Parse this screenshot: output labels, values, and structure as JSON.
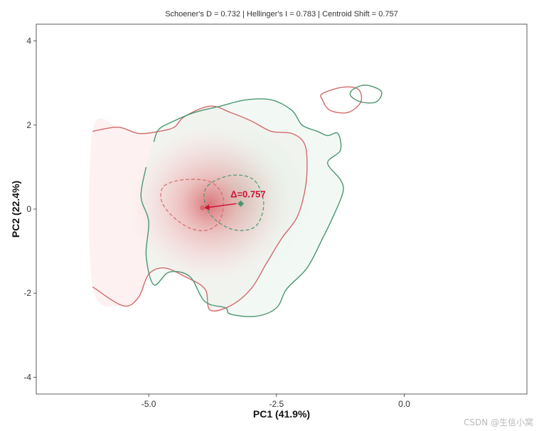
{
  "chart_data": {
    "type": "density-contour",
    "title": "Schoener's D = 0.732 | Hellinger's I = 0.783 | Centroid Shift = 0.757",
    "xlabel": "PC1 (41.9%)",
    "ylabel": "PC2 (22.4%)",
    "xlim": [
      -7.2,
      2.4
    ],
    "ylim": [
      -4.4,
      4.4
    ],
    "x_ticks": [
      -5.0,
      -2.5,
      0.0
    ],
    "x_tick_labels": [
      "-5.0",
      "-2.5",
      "0.0"
    ],
    "y_ticks": [
      -4,
      -2,
      0,
      2,
      4
    ],
    "y_tick_labels": [
      "-4",
      "-2",
      "0",
      "2",
      "4"
    ],
    "grid": false,
    "colors": {
      "red": "#d46a6a",
      "green": "#4a9670",
      "arrow": "#cc1133"
    },
    "series": [
      {
        "color": "#d46a6a",
        "centroid": [
          -3.95,
          0.03
        ],
        "density_peak": [
          -3.95,
          0.03
        ],
        "outer_contour": [
          [
            -6.1,
            1.85
          ],
          [
            -5.6,
            1.95
          ],
          [
            -5.2,
            1.8
          ],
          [
            -4.8,
            1.85
          ],
          [
            -4.5,
            1.95
          ],
          [
            -4.3,
            2.2
          ],
          [
            -3.8,
            2.45
          ],
          [
            -3.4,
            2.3
          ],
          [
            -3.0,
            2.1
          ],
          [
            -2.6,
            1.85
          ],
          [
            -2.2,
            1.8
          ],
          [
            -1.95,
            1.55
          ],
          [
            -1.9,
            1.0
          ],
          [
            -1.95,
            0.4
          ],
          [
            -2.1,
            -0.2
          ],
          [
            -2.4,
            -0.7
          ],
          [
            -2.7,
            -1.3
          ],
          [
            -3.0,
            -1.9
          ],
          [
            -3.4,
            -2.3
          ],
          [
            -3.8,
            -2.4
          ],
          [
            -3.9,
            -1.9
          ],
          [
            -4.3,
            -1.6
          ],
          [
            -4.7,
            -1.4
          ],
          [
            -5.0,
            -1.55
          ],
          [
            -5.2,
            -2.1
          ],
          [
            -5.5,
            -2.3
          ],
          [
            -6.1,
            -1.85
          ]
        ],
        "inner_contour": [
          [
            -4.7,
            0.55
          ],
          [
            -4.3,
            0.7
          ],
          [
            -3.8,
            0.65
          ],
          [
            -3.55,
            0.3
          ],
          [
            -3.6,
            -0.25
          ],
          [
            -3.85,
            -0.5
          ],
          [
            -4.2,
            -0.45
          ],
          [
            -4.55,
            -0.15
          ],
          [
            -4.75,
            0.2
          ]
        ],
        "island_contour": [
          [
            -1.6,
            2.75
          ],
          [
            -1.2,
            2.9
          ],
          [
            -0.9,
            2.85
          ],
          [
            -0.85,
            2.55
          ],
          [
            -1.1,
            2.3
          ],
          [
            -1.45,
            2.35
          ],
          [
            -1.6,
            2.6
          ]
        ]
      },
      {
        "color": "#4a9670",
        "centroid": [
          -3.2,
          0.13
        ],
        "outer_contour": [
          [
            -4.9,
            1.6
          ],
          [
            -4.8,
            1.9
          ],
          [
            -4.5,
            2.1
          ],
          [
            -4.1,
            2.3
          ],
          [
            -3.6,
            2.45
          ],
          [
            -3.1,
            2.6
          ],
          [
            -2.6,
            2.6
          ],
          [
            -2.2,
            2.35
          ],
          [
            -2.0,
            2.0
          ],
          [
            -1.7,
            1.85
          ],
          [
            -1.5,
            1.75
          ],
          [
            -1.3,
            1.8
          ],
          [
            -1.25,
            1.4
          ],
          [
            -1.5,
            1.1
          ],
          [
            -1.25,
            0.7
          ],
          [
            -1.2,
            0.4
          ],
          [
            -1.4,
            -0.2
          ],
          [
            -1.6,
            -0.7
          ],
          [
            -1.9,
            -1.4
          ],
          [
            -2.3,
            -1.9
          ],
          [
            -2.5,
            -2.35
          ],
          [
            -2.9,
            -2.55
          ],
          [
            -3.4,
            -2.5
          ],
          [
            -3.5,
            -2.35
          ],
          [
            -3.9,
            -2.2
          ],
          [
            -4.2,
            -1.6
          ],
          [
            -4.6,
            -1.5
          ],
          [
            -4.9,
            -1.8
          ],
          [
            -5.05,
            -1.1
          ],
          [
            -5.0,
            -0.3
          ],
          [
            -5.15,
            0.3
          ],
          [
            -5.05,
            1.0
          ]
        ],
        "inner_contour": [
          [
            -3.85,
            0.55
          ],
          [
            -3.4,
            0.8
          ],
          [
            -2.95,
            0.7
          ],
          [
            -2.75,
            0.15
          ],
          [
            -2.9,
            -0.4
          ],
          [
            -3.3,
            -0.5
          ],
          [
            -3.7,
            -0.25
          ],
          [
            -3.9,
            0.15
          ]
        ],
        "island_contour": [
          [
            -1.0,
            2.85
          ],
          [
            -0.75,
            2.95
          ],
          [
            -0.45,
            2.8
          ],
          [
            -0.55,
            2.55
          ],
          [
            -0.85,
            2.55
          ],
          [
            -1.05,
            2.7
          ]
        ]
      }
    ],
    "annotations": [
      {
        "text": "Δ=0.757",
        "x": -3.4,
        "y": 0.28,
        "color": "#cc1133"
      }
    ],
    "watermark": "CSDN @生信小窝"
  }
}
